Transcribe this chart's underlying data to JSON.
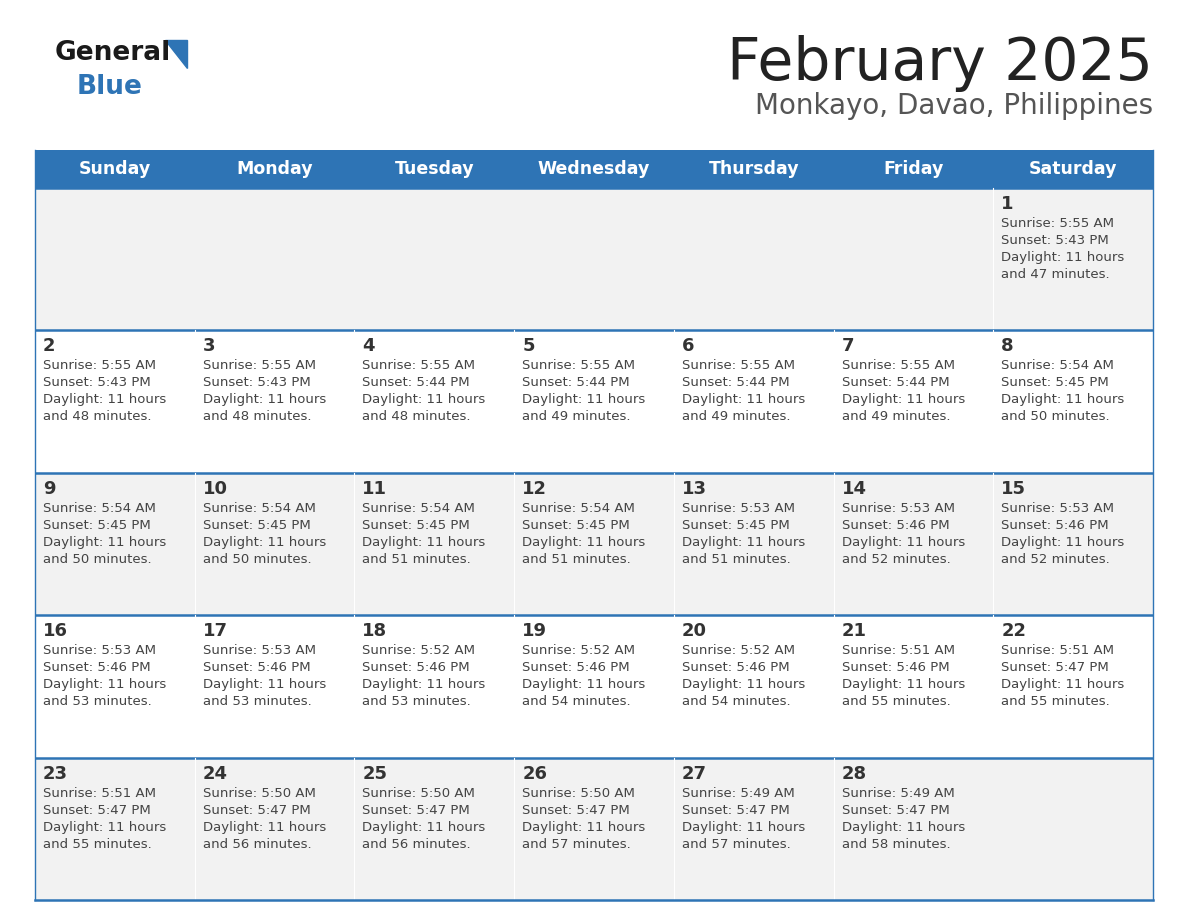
{
  "title": "February 2025",
  "subtitle": "Monkayo, Davao, Philippines",
  "header_bg": "#2E74B5",
  "header_text": "#FFFFFF",
  "row_bg_light": "#F2F2F2",
  "row_bg_white": "#FFFFFF",
  "separator_color": "#2E74B5",
  "day_headers": [
    "Sunday",
    "Monday",
    "Tuesday",
    "Wednesday",
    "Thursday",
    "Friday",
    "Saturday"
  ],
  "title_color": "#222222",
  "subtitle_color": "#555555",
  "logo_general_color": "#1a1a1a",
  "logo_blue_color": "#2E74B5",
  "cell_text_color": "#444444",
  "day_num_color": "#333333",
  "calendar_data": [
    [
      null,
      null,
      null,
      null,
      null,
      null,
      {
        "day": "1",
        "sunrise": "5:55 AM",
        "sunset": "5:43 PM",
        "daylight": "11 hours",
        "daylight2": "and 47 minutes."
      }
    ],
    [
      {
        "day": "2",
        "sunrise": "5:55 AM",
        "sunset": "5:43 PM",
        "daylight": "11 hours",
        "daylight2": "and 48 minutes."
      },
      {
        "day": "3",
        "sunrise": "5:55 AM",
        "sunset": "5:43 PM",
        "daylight": "11 hours",
        "daylight2": "and 48 minutes."
      },
      {
        "day": "4",
        "sunrise": "5:55 AM",
        "sunset": "5:44 PM",
        "daylight": "11 hours",
        "daylight2": "and 48 minutes."
      },
      {
        "day": "5",
        "sunrise": "5:55 AM",
        "sunset": "5:44 PM",
        "daylight": "11 hours",
        "daylight2": "and 49 minutes."
      },
      {
        "day": "6",
        "sunrise": "5:55 AM",
        "sunset": "5:44 PM",
        "daylight": "11 hours",
        "daylight2": "and 49 minutes."
      },
      {
        "day": "7",
        "sunrise": "5:55 AM",
        "sunset": "5:44 PM",
        "daylight": "11 hours",
        "daylight2": "and 49 minutes."
      },
      {
        "day": "8",
        "sunrise": "5:54 AM",
        "sunset": "5:45 PM",
        "daylight": "11 hours",
        "daylight2": "and 50 minutes."
      }
    ],
    [
      {
        "day": "9",
        "sunrise": "5:54 AM",
        "sunset": "5:45 PM",
        "daylight": "11 hours",
        "daylight2": "and 50 minutes."
      },
      {
        "day": "10",
        "sunrise": "5:54 AM",
        "sunset": "5:45 PM",
        "daylight": "11 hours",
        "daylight2": "and 50 minutes."
      },
      {
        "day": "11",
        "sunrise": "5:54 AM",
        "sunset": "5:45 PM",
        "daylight": "11 hours",
        "daylight2": "and 51 minutes."
      },
      {
        "day": "12",
        "sunrise": "5:54 AM",
        "sunset": "5:45 PM",
        "daylight": "11 hours",
        "daylight2": "and 51 minutes."
      },
      {
        "day": "13",
        "sunrise": "5:53 AM",
        "sunset": "5:45 PM",
        "daylight": "11 hours",
        "daylight2": "and 51 minutes."
      },
      {
        "day": "14",
        "sunrise": "5:53 AM",
        "sunset": "5:46 PM",
        "daylight": "11 hours",
        "daylight2": "and 52 minutes."
      },
      {
        "day": "15",
        "sunrise": "5:53 AM",
        "sunset": "5:46 PM",
        "daylight": "11 hours",
        "daylight2": "and 52 minutes."
      }
    ],
    [
      {
        "day": "16",
        "sunrise": "5:53 AM",
        "sunset": "5:46 PM",
        "daylight": "11 hours",
        "daylight2": "and 53 minutes."
      },
      {
        "day": "17",
        "sunrise": "5:53 AM",
        "sunset": "5:46 PM",
        "daylight": "11 hours",
        "daylight2": "and 53 minutes."
      },
      {
        "day": "18",
        "sunrise": "5:52 AM",
        "sunset": "5:46 PM",
        "daylight": "11 hours",
        "daylight2": "and 53 minutes."
      },
      {
        "day": "19",
        "sunrise": "5:52 AM",
        "sunset": "5:46 PM",
        "daylight": "11 hours",
        "daylight2": "and 54 minutes."
      },
      {
        "day": "20",
        "sunrise": "5:52 AM",
        "sunset": "5:46 PM",
        "daylight": "11 hours",
        "daylight2": "and 54 minutes."
      },
      {
        "day": "21",
        "sunrise": "5:51 AM",
        "sunset": "5:46 PM",
        "daylight": "11 hours",
        "daylight2": "and 55 minutes."
      },
      {
        "day": "22",
        "sunrise": "5:51 AM",
        "sunset": "5:47 PM",
        "daylight": "11 hours",
        "daylight2": "and 55 minutes."
      }
    ],
    [
      {
        "day": "23",
        "sunrise": "5:51 AM",
        "sunset": "5:47 PM",
        "daylight": "11 hours",
        "daylight2": "and 55 minutes."
      },
      {
        "day": "24",
        "sunrise": "5:50 AM",
        "sunset": "5:47 PM",
        "daylight": "11 hours",
        "daylight2": "and 56 minutes."
      },
      {
        "day": "25",
        "sunrise": "5:50 AM",
        "sunset": "5:47 PM",
        "daylight": "11 hours",
        "daylight2": "and 56 minutes."
      },
      {
        "day": "26",
        "sunrise": "5:50 AM",
        "sunset": "5:47 PM",
        "daylight": "11 hours",
        "daylight2": "and 57 minutes."
      },
      {
        "day": "27",
        "sunrise": "5:49 AM",
        "sunset": "5:47 PM",
        "daylight": "11 hours",
        "daylight2": "and 57 minutes."
      },
      {
        "day": "28",
        "sunrise": "5:49 AM",
        "sunset": "5:47 PM",
        "daylight": "11 hours",
        "daylight2": "and 58 minutes."
      },
      null
    ]
  ]
}
